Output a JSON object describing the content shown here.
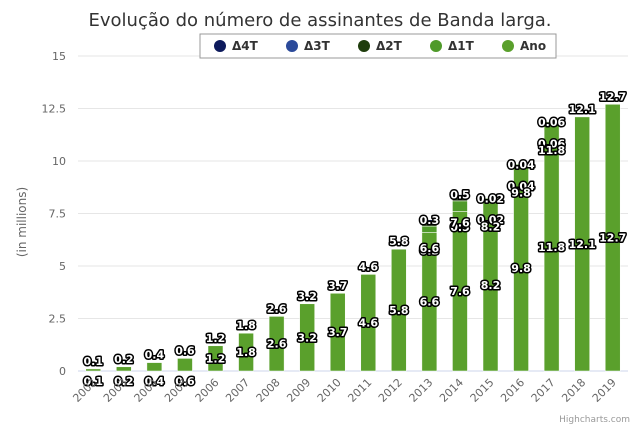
{
  "chart_data": {
    "type": "bar",
    "stacked": true,
    "title": "Evolução do número de assinantes de Banda larga.",
    "ylabel": "(in millions)",
    "ylim": [
      0,
      15
    ],
    "yticks": [
      "0",
      "2.5",
      "5",
      "7.5",
      "10",
      "12.5",
      "15"
    ],
    "ytick_values": [
      0,
      2.5,
      5,
      7.5,
      10,
      12.5,
      15
    ],
    "categories": [
      "2002",
      "2003",
      "2004",
      "2005",
      "2006",
      "2007",
      "2008",
      "2009",
      "2010",
      "2011",
      "2012",
      "2013",
      "2014",
      "2015",
      "2016",
      "2017",
      "2018",
      "2019"
    ],
    "grid": true,
    "legend_position": "top",
    "series": [
      {
        "name": "Ano",
        "color": "#5aa02c",
        "values": [
          0.1,
          0.2,
          0.4,
          0.6,
          1.2,
          1.8,
          2.6,
          3.2,
          3.7,
          4.6,
          5.8,
          6.6,
          7.6,
          8.2,
          9.8,
          11.8,
          12.1,
          12.7
        ],
        "labels": [
          "0.1",
          "0.2",
          "0.4",
          "0.6",
          "1.2",
          "1.8",
          "2.6",
          "3.2",
          "3.7",
          "4.6",
          "5.8",
          "6.6",
          "7.6",
          "8.2",
          "9.8",
          "11.8",
          "12.1",
          "12.7"
        ]
      },
      {
        "name": "Δ1T",
        "color": "#4f9a2a",
        "values": [
          0,
          0,
          0,
          0,
          0,
          0,
          0,
          0,
          0,
          0,
          0,
          0.3,
          0.5,
          0.02,
          0.04,
          0.06,
          0,
          0
        ],
        "labels": [
          "",
          "",
          "",
          "",
          "",
          "",
          "",
          "",
          "",
          "",
          "",
          "0.3",
          "0.5",
          "0.02",
          "0.04",
          "0.06",
          "",
          ""
        ]
      },
      {
        "name": "Δ2T",
        "color": "#1f3d0c",
        "values": [
          0,
          0,
          0,
          0,
          0,
          0,
          0,
          0,
          0,
          0,
          0,
          0.1,
          0.1,
          0,
          0,
          0,
          0,
          0
        ],
        "labels": [
          "",
          "",
          "",
          "",
          "",
          "",
          "",
          "",
          "",
          "",
          "",
          "",
          "",
          "",
          "",
          "",
          "",
          ""
        ]
      },
      {
        "name": "Δ3T",
        "color": "#2b4a9a",
        "values": [
          0,
          0,
          0,
          0,
          0,
          0,
          0,
          0,
          0,
          0,
          0,
          0.1,
          0.1,
          0,
          0,
          0,
          0,
          0
        ],
        "labels": [
          "",
          "",
          "",
          "",
          "",
          "",
          "",
          "",
          "",
          "",
          "",
          "",
          "",
          "",
          "",
          "",
          "",
          ""
        ]
      },
      {
        "name": "Δ4T",
        "color": "#0d1a5c",
        "values": [
          0,
          0,
          0,
          0,
          0,
          0,
          0,
          0,
          0,
          0,
          0,
          0.1,
          0.1,
          0,
          0,
          0,
          0,
          0
        ],
        "labels": [
          "",
          "",
          "",
          "",
          "",
          "",
          "",
          "",
          "",
          "",
          "",
          "",
          "",
          "",
          "",
          "",
          "",
          ""
        ]
      }
    ],
    "legend": [
      {
        "name": "Δ4T",
        "color": "#0d1a5c"
      },
      {
        "name": "Δ3T",
        "color": "#2b4a9a"
      },
      {
        "name": "Δ2T",
        "color": "#1f3d0c"
      },
      {
        "name": "Δ1T",
        "color": "#4f9a2a"
      },
      {
        "name": "Ano",
        "color": "#5aa02c"
      }
    ],
    "credits": "Highcharts.com"
  }
}
